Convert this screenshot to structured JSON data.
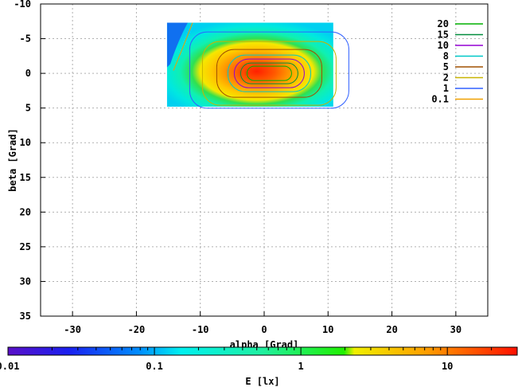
{
  "chart_data": {
    "type": "heatmap",
    "title": "",
    "xlabel": "alpha [Grad]",
    "ylabel": "beta [Grad]",
    "xlim": [
      -35,
      35
    ],
    "ylim": [
      -10,
      35
    ],
    "y_inverted": true,
    "x_ticks": [
      "-30",
      "-20",
      "-10",
      "0",
      "10",
      "20",
      "30"
    ],
    "y_ticks": [
      "-10",
      "-5",
      "0",
      "5",
      "10",
      "15",
      "20",
      "25",
      "30",
      "35"
    ],
    "grid": true,
    "heatmap_extent": {
      "x": [
        -15.2,
        10.8
      ],
      "y": [
        -7.3,
        4.8
      ]
    },
    "contour_levels": [
      {
        "label": "20",
        "color": "#00b000"
      },
      {
        "label": "15",
        "color": "#008c3c"
      },
      {
        "label": "10",
        "color": "#9400d3"
      },
      {
        "label": "8",
        "color": "#00c8c8"
      },
      {
        "label": "5",
        "color": "#a05000"
      },
      {
        "label": "2",
        "color": "#c8b400"
      },
      {
        "label": "1",
        "color": "#3060ff"
      },
      {
        "label": "0.1",
        "color": "#f0a000"
      }
    ],
    "legend_position": "top-right",
    "colorbar": {
      "label": "E [lx]",
      "scale": "log",
      "range": [
        0.01,
        30
      ],
      "ticks": [
        "0.01",
        "0.1",
        "1",
        "10"
      ]
    }
  }
}
